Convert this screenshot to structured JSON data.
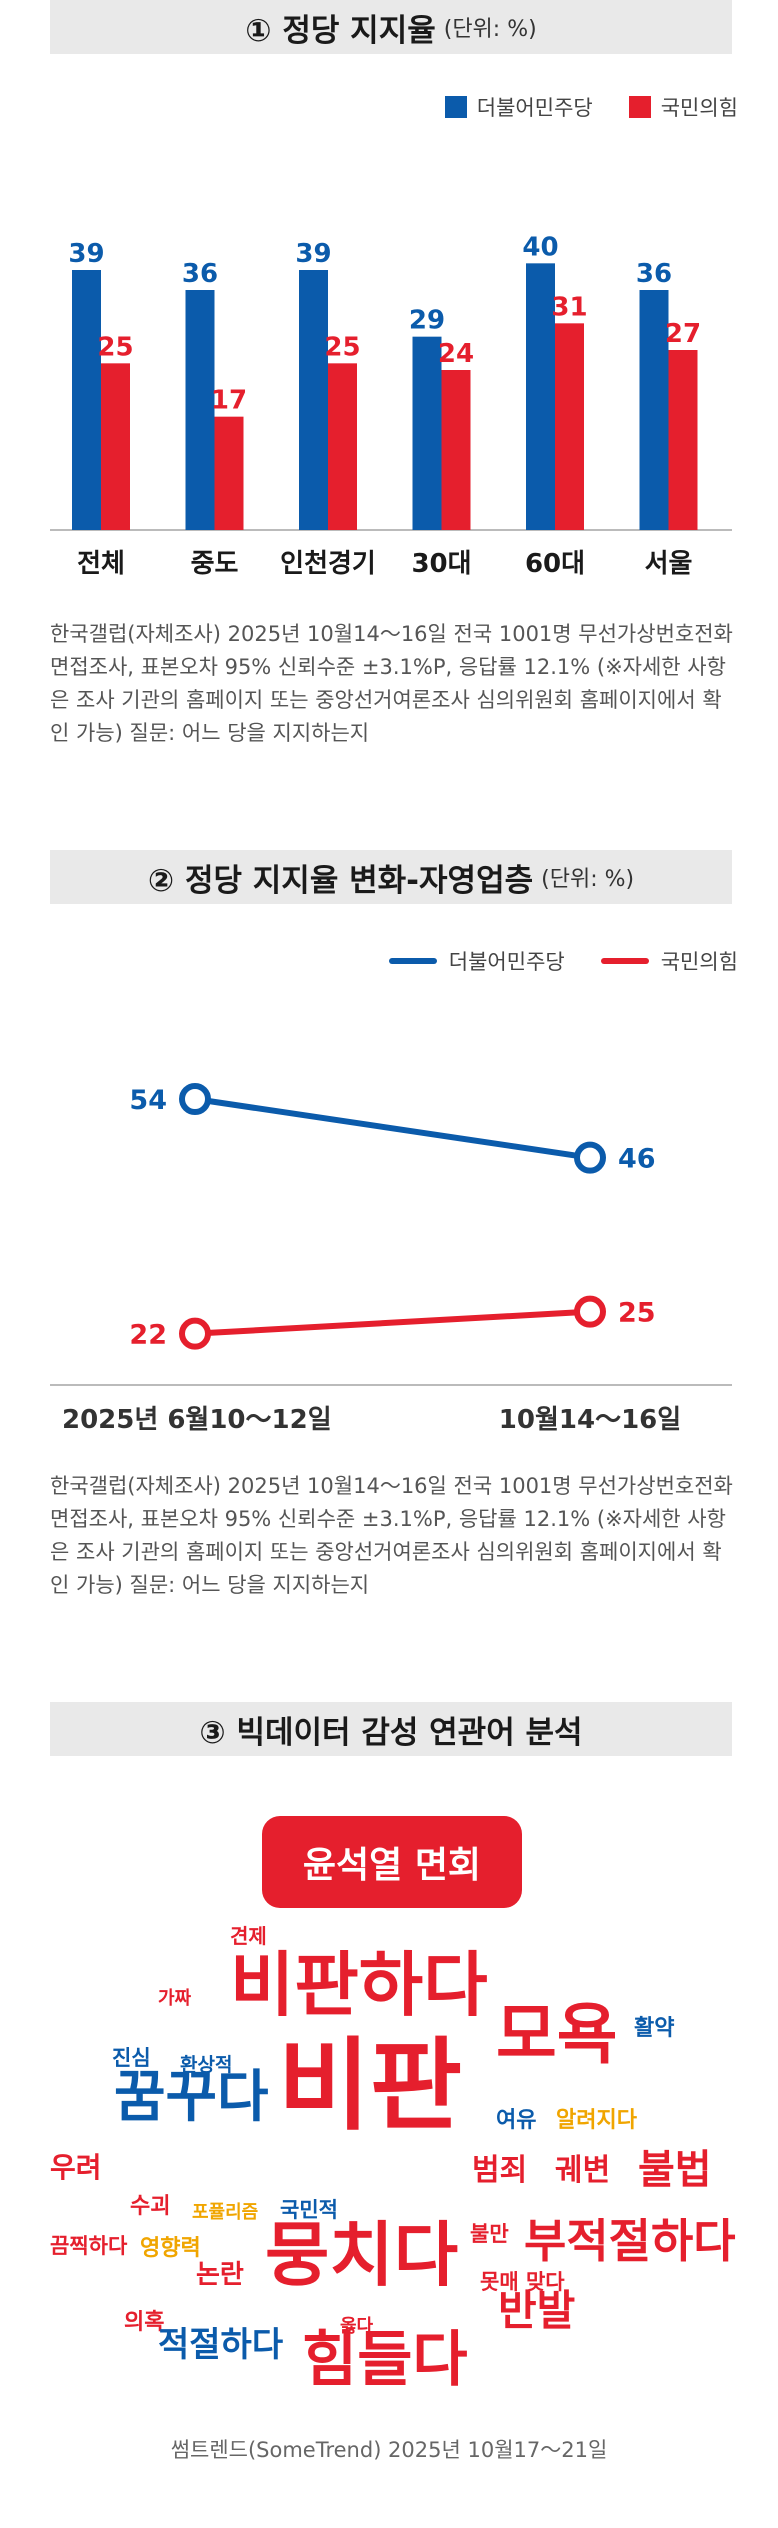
{
  "section1": {
    "title": "① 정당 지지율",
    "unit": "(단위: %)"
  },
  "section2": {
    "title": "② 정당 지지율 변화-자영업층",
    "unit": "(단위: %)"
  },
  "section3": {
    "title": "③ 빅데이터 감성 연관어 분석"
  },
  "colors": {
    "dem": "#0b5bab",
    "ppp": "#e51f2d"
  },
  "chart_data": [
    {
      "type": "bar",
      "categories": [
        "전체",
        "중도",
        "인천경기",
        "30대",
        "60대",
        "서울"
      ],
      "series": [
        {
          "name": "더불어민주당",
          "values": [
            39,
            36,
            39,
            29,
            40,
            36
          ]
        },
        {
          "name": "국민의힘",
          "values": [
            25,
            17,
            25,
            24,
            31,
            27
          ]
        }
      ],
      "ylim": [
        0,
        45
      ],
      "grid": false,
      "legend": "top-right"
    },
    {
      "type": "line",
      "x": [
        "2025년 6월10～12일",
        "10월14～16일"
      ],
      "series": [
        {
          "name": "더불어민주당",
          "values": [
            54,
            46
          ]
        },
        {
          "name": "국민의힘",
          "values": [
            22,
            25
          ]
        }
      ],
      "ylim": [
        15,
        60
      ],
      "grid": false,
      "legend": "top-right"
    }
  ],
  "note1": "한국갤럽(자체조사) 2025년 10월14～16일 전국 1001명 무선가상번호전화면접조사, 표본오차 95% 신뢰수준 ±3.1%P, 응답률 12.1% (※자세한 사항은 조사 기관의 홈페이지 또는 중앙선거여론조사 심의위원회 홈페이지에서 확인 가능) 질문: 어느 당을 지지하는지",
  "note2": "한국갤럽(자체조사) 2025년 10월14～16일 전국 1001명 무선가상번호전화면접조사, 표본오차 95% 신뢰수준 ±3.1%P, 응답률 12.1% (※자세한 사항은 조사 기관의 홈페이지 또는 중앙선거여론조사 심의위원회 홈페이지에서 확인 가능) 질문: 어느 당을 지지하는지",
  "wordcloud": {
    "center": "윤석열 면회",
    "words": [
      {
        "text": "견제",
        "color": "#e51f2d"
      },
      {
        "text": "가짜",
        "color": "#e51f2d"
      },
      {
        "text": "비판하다",
        "color": "#e51f2d"
      },
      {
        "text": "모욕",
        "color": "#e51f2d"
      },
      {
        "text": "활약",
        "color": "#0b5bab"
      },
      {
        "text": "진심",
        "color": "#0b5bab"
      },
      {
        "text": "환상적",
        "color": "#0b5bab"
      },
      {
        "text": "꿈꾸다",
        "color": "#0b5bab"
      },
      {
        "text": "비판",
        "color": "#e51f2d"
      },
      {
        "text": "여유",
        "color": "#0b5bab"
      },
      {
        "text": "알려지다",
        "color": "#f0a500"
      },
      {
        "text": "우려",
        "color": "#e51f2d"
      },
      {
        "text": "범죄",
        "color": "#e51f2d"
      },
      {
        "text": "궤변",
        "color": "#e51f2d"
      },
      {
        "text": "불법",
        "color": "#e51f2d"
      },
      {
        "text": "수괴",
        "color": "#e51f2d"
      },
      {
        "text": "포퓰리즘",
        "color": "#f0a500"
      },
      {
        "text": "국민적",
        "color": "#0b5bab"
      },
      {
        "text": "끔찍하다",
        "color": "#e51f2d"
      },
      {
        "text": "영향력",
        "color": "#f0a500"
      },
      {
        "text": "뭉치다",
        "color": "#e51f2d"
      },
      {
        "text": "불만",
        "color": "#e51f2d"
      },
      {
        "text": "부적절하다",
        "color": "#e51f2d"
      },
      {
        "text": "논란",
        "color": "#e51f2d"
      },
      {
        "text": "못매 맞다",
        "color": "#e51f2d"
      },
      {
        "text": "의혹",
        "color": "#e51f2d"
      },
      {
        "text": "옳다",
        "color": "#e51f2d"
      },
      {
        "text": "반발",
        "color": "#e51f2d"
      },
      {
        "text": "적절하다",
        "color": "#0b5bab"
      },
      {
        "text": "힘들다",
        "color": "#e51f2d"
      }
    ]
  },
  "source": "썸트렌드(SomeTrend) 2025년 10월17～21일"
}
